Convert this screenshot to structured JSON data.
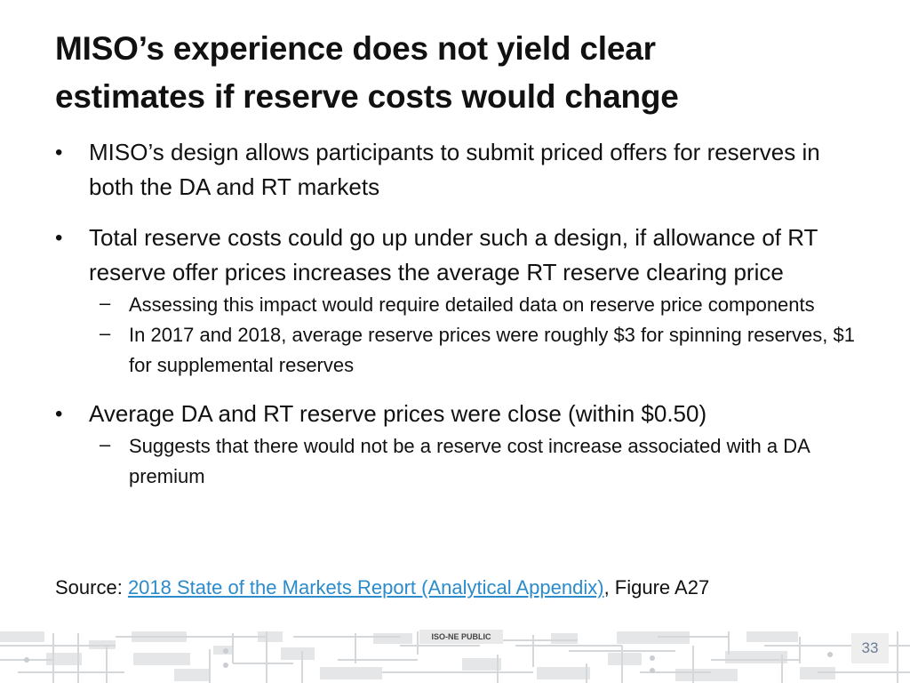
{
  "slide": {
    "title_line1": "MISO’s experience does not yield clear",
    "title_line2": "estimates if reserve costs would change",
    "bullets": [
      {
        "text": "MISO’s design allows participants to submit priced offers for reserves in both the DA and RT markets",
        "subs": []
      },
      {
        "text": "Total reserve costs could go up under such a design, if allowance of RT reserve offer prices increases the average RT reserve clearing price",
        "subs": [
          "Assessing this impact would require detailed data on reserve price components",
          "In 2017 and 2018, average reserve prices were roughly $3 for spinning reserves, $1 for supplemental reserves"
        ]
      },
      {
        "text": "Average DA and RT reserve prices were close (within $0.50)",
        "subs": [
          "Suggests that there would not be a reserve cost increase associated with a DA premium"
        ]
      }
    ],
    "source_prefix": "Source: ",
    "source_link": "2018 State of the Markets Report (Analytical Appendix)",
    "source_suffix": ", Figure A27",
    "footer_tag": "ISO-NE PUBLIC",
    "page_number": "33",
    "colors": {
      "link": "#2b8bcb",
      "page_number": "#6a7d97"
    }
  }
}
